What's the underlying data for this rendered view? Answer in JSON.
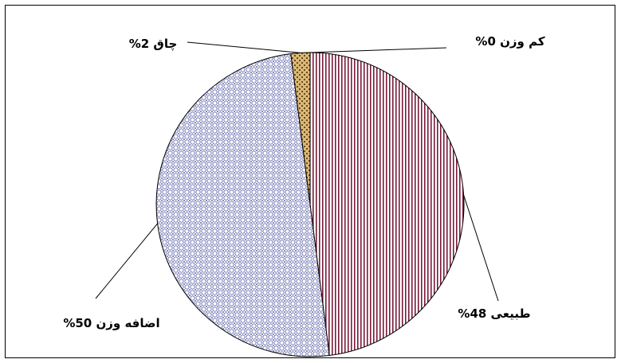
{
  "chart_data": {
    "type": "pie",
    "slices": [
      {
        "label": "کم وزن",
        "value": 0,
        "text": "کم وزن  0%",
        "pattern": "dots-sparse",
        "color": "#ffffff"
      },
      {
        "label": "طبیعی",
        "value": 48,
        "text": "طبیعی 48%",
        "pattern": "vertical-stripes",
        "color": "#7a1c3a"
      },
      {
        "label": "اضافه وزن",
        "value": 50,
        "text": "اضافه وزن 50%",
        "pattern": "circle-lattice",
        "color": "#7b7fb8"
      },
      {
        "label": "چاق",
        "value": 2,
        "text": "چاق 2%",
        "pattern": "brick",
        "color": "#8a6a2e"
      }
    ],
    "legend": "none",
    "start": "top",
    "direction": "clockwise"
  }
}
